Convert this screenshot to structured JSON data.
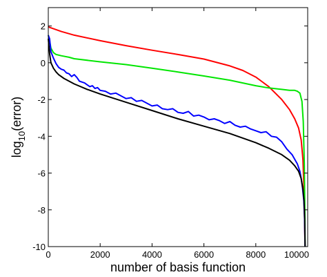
{
  "chart_data": {
    "type": "line",
    "title": "",
    "xlabel": "number of basis function",
    "ylabel": {
      "prefix": "log",
      "subscript": "10",
      "suffix": "(error)"
    },
    "xlim": [
      0,
      10000
    ],
    "ylim": [
      -10,
      3
    ],
    "xticks": [
      0,
      2000,
      4000,
      6000,
      8000,
      10000
    ],
    "xtick_labels": [
      "0",
      "2000",
      "4000",
      "6000",
      "8000",
      "10000"
    ],
    "yticks": [
      2,
      0,
      -2,
      -4,
      -6,
      -8,
      -10
    ],
    "ytick_labels": [
      "2",
      "0",
      "-2",
      "-4",
      "-6",
      "-8",
      "-10"
    ],
    "grid": false,
    "legend": "none",
    "series": [
      {
        "color": "#ff0000",
        "x": [
          0,
          500,
          1000,
          2000,
          3000,
          4000,
          5000,
          6000,
          7000,
          7500,
          8000,
          8500,
          9000,
          9300,
          9500,
          9650,
          9750,
          9820,
          9860,
          9880,
          9900
        ],
        "y": [
          1.95,
          1.7,
          1.5,
          1.2,
          0.93,
          0.68,
          0.45,
          0.2,
          -0.17,
          -0.42,
          -0.78,
          -1.3,
          -2.0,
          -2.55,
          -3.05,
          -3.55,
          -4.2,
          -5.3,
          -7.0,
          -8.5,
          -10
        ]
      },
      {
        "color": "#00e600",
        "x": [
          0,
          50,
          100,
          200,
          300,
          500,
          800,
          1000,
          2000,
          3000,
          4000,
          5000,
          6000,
          7000,
          8000,
          8500,
          9000,
          9300,
          9500,
          9600,
          9700,
          9780,
          9830,
          9870,
          9890,
          9900
        ],
        "y": [
          1.5,
          1.2,
          0.8,
          0.55,
          0.45,
          0.38,
          0.3,
          0.22,
          0.05,
          -0.1,
          -0.3,
          -0.5,
          -0.72,
          -0.95,
          -1.25,
          -1.37,
          -1.45,
          -1.5,
          -1.5,
          -1.55,
          -1.65,
          -2.1,
          -3.2,
          -5.5,
          -8.0,
          -10
        ]
      },
      {
        "color": "#0000ff",
        "x": [
          0,
          50,
          100,
          200,
          300,
          400,
          500,
          600,
          700,
          800,
          900,
          1000,
          1100,
          1200,
          1300,
          1400,
          1500,
          1600,
          1700,
          1800,
          1900,
          2000,
          2200,
          2400,
          2600,
          2800,
          3000,
          3200,
          3400,
          3600,
          3800,
          4000,
          4200,
          4400,
          4600,
          4800,
          5000,
          5200,
          5400,
          5600,
          5800,
          6000,
          6200,
          6400,
          6600,
          6800,
          7000,
          7200,
          7400,
          7600,
          7800,
          8000,
          8200,
          8400,
          8600,
          8800,
          9000,
          9200,
          9400,
          9600,
          9700,
          9750,
          9800,
          9850,
          9880,
          9900
        ],
        "y": [
          1.5,
          1.3,
          0.6,
          0.25,
          -0.05,
          -0.25,
          -0.35,
          -0.4,
          -0.55,
          -0.6,
          -0.75,
          -0.65,
          -0.8,
          -1.0,
          -1.05,
          -1.1,
          -1.2,
          -1.3,
          -1.25,
          -1.4,
          -1.35,
          -1.5,
          -1.55,
          -1.7,
          -1.65,
          -1.8,
          -1.95,
          -1.9,
          -2.1,
          -2.05,
          -2.2,
          -2.35,
          -2.3,
          -2.5,
          -2.55,
          -2.5,
          -2.7,
          -2.75,
          -2.65,
          -2.9,
          -2.85,
          -2.95,
          -3.1,
          -3.05,
          -3.15,
          -3.3,
          -3.2,
          -3.4,
          -3.5,
          -3.45,
          -3.6,
          -3.7,
          -3.8,
          -3.75,
          -4.0,
          -4.05,
          -4.3,
          -4.7,
          -5.0,
          -5.5,
          -5.9,
          -6.3,
          -6.8,
          -7.5,
          -8.5,
          -10
        ]
      },
      {
        "color": "#000000",
        "x": [
          0,
          50,
          100,
          200,
          300,
          400,
          600,
          800,
          1000,
          1500,
          2000,
          3000,
          4000,
          5000,
          6000,
          7000,
          8000,
          8500,
          9000,
          9300,
          9500,
          9650,
          9750,
          9820,
          9860,
          9885,
          9900
        ],
        "y": [
          1.3,
          0.5,
          0.0,
          -0.3,
          -0.5,
          -0.65,
          -0.85,
          -1.0,
          -1.15,
          -1.45,
          -1.7,
          -2.15,
          -2.6,
          -3.05,
          -3.45,
          -3.85,
          -4.35,
          -4.65,
          -5.0,
          -5.3,
          -5.6,
          -5.9,
          -6.3,
          -6.9,
          -7.5,
          -8.5,
          -10
        ]
      }
    ]
  }
}
